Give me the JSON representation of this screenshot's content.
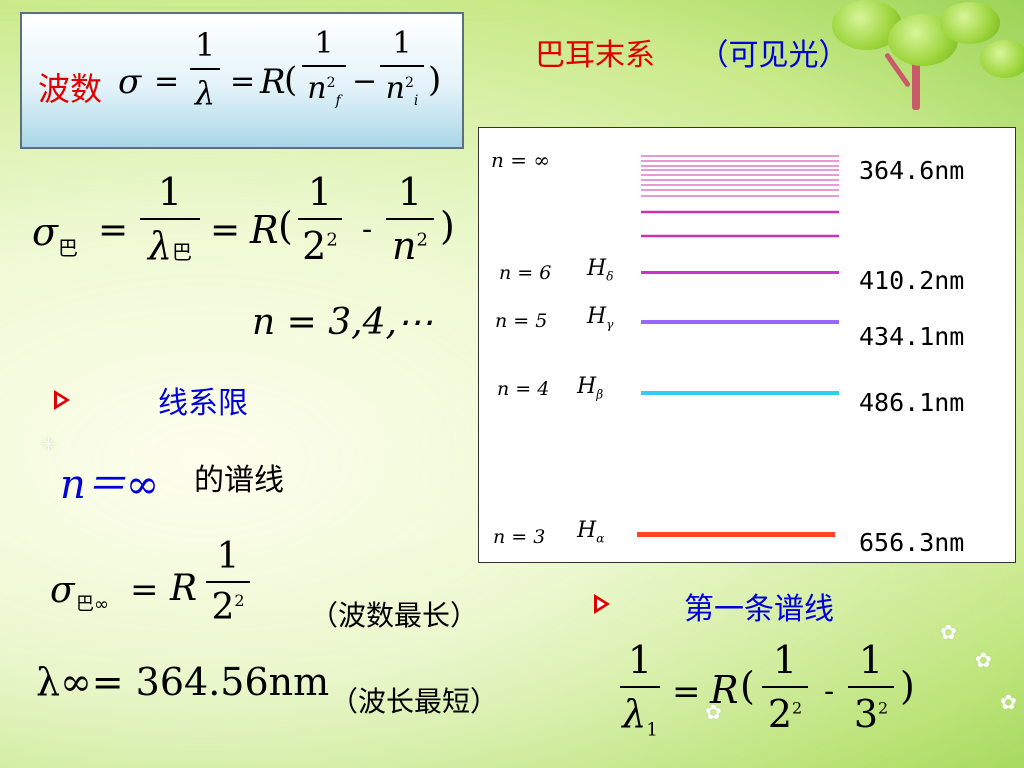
{
  "title": {
    "series_name": "巴耳末系",
    "visible_light": "（可见光）"
  },
  "formula_box": {
    "label": "波数"
  },
  "balmer_formula": {
    "n_values": "n = 3,4,⋯"
  },
  "series_limit": {
    "heading": "线系限",
    "n_inf_text": "n＝∞",
    "spectral_line": "的谱线",
    "wavenumber_note": "（波数最长）",
    "lambda_inf": "λ∞= 364.56nm",
    "wavelength_note": "（波长最短）"
  },
  "first_line": {
    "heading": "第一条谱线"
  },
  "diagram": {
    "top_label": "n  = ∞",
    "levels": [
      {
        "n": "n = 6",
        "h": "H",
        "sub": "δ",
        "wavelength": "410.2nm",
        "color": "#cc33cc"
      },
      {
        "n": "n = 5",
        "h": "H",
        "sub": "γ",
        "wavelength": "434.1nm",
        "color": "#9966ff"
      },
      {
        "n": "n = 4",
        "h": "H",
        "sub": "β",
        "wavelength": "486.1nm",
        "color": "#33ccee"
      },
      {
        "n": "n = 3",
        "h": "H",
        "sub": "α",
        "wavelength": "656.3nm",
        "color": "#ff4422"
      }
    ],
    "limit_wavelength": "364.6nm",
    "limit_color": "#cc33aa"
  }
}
